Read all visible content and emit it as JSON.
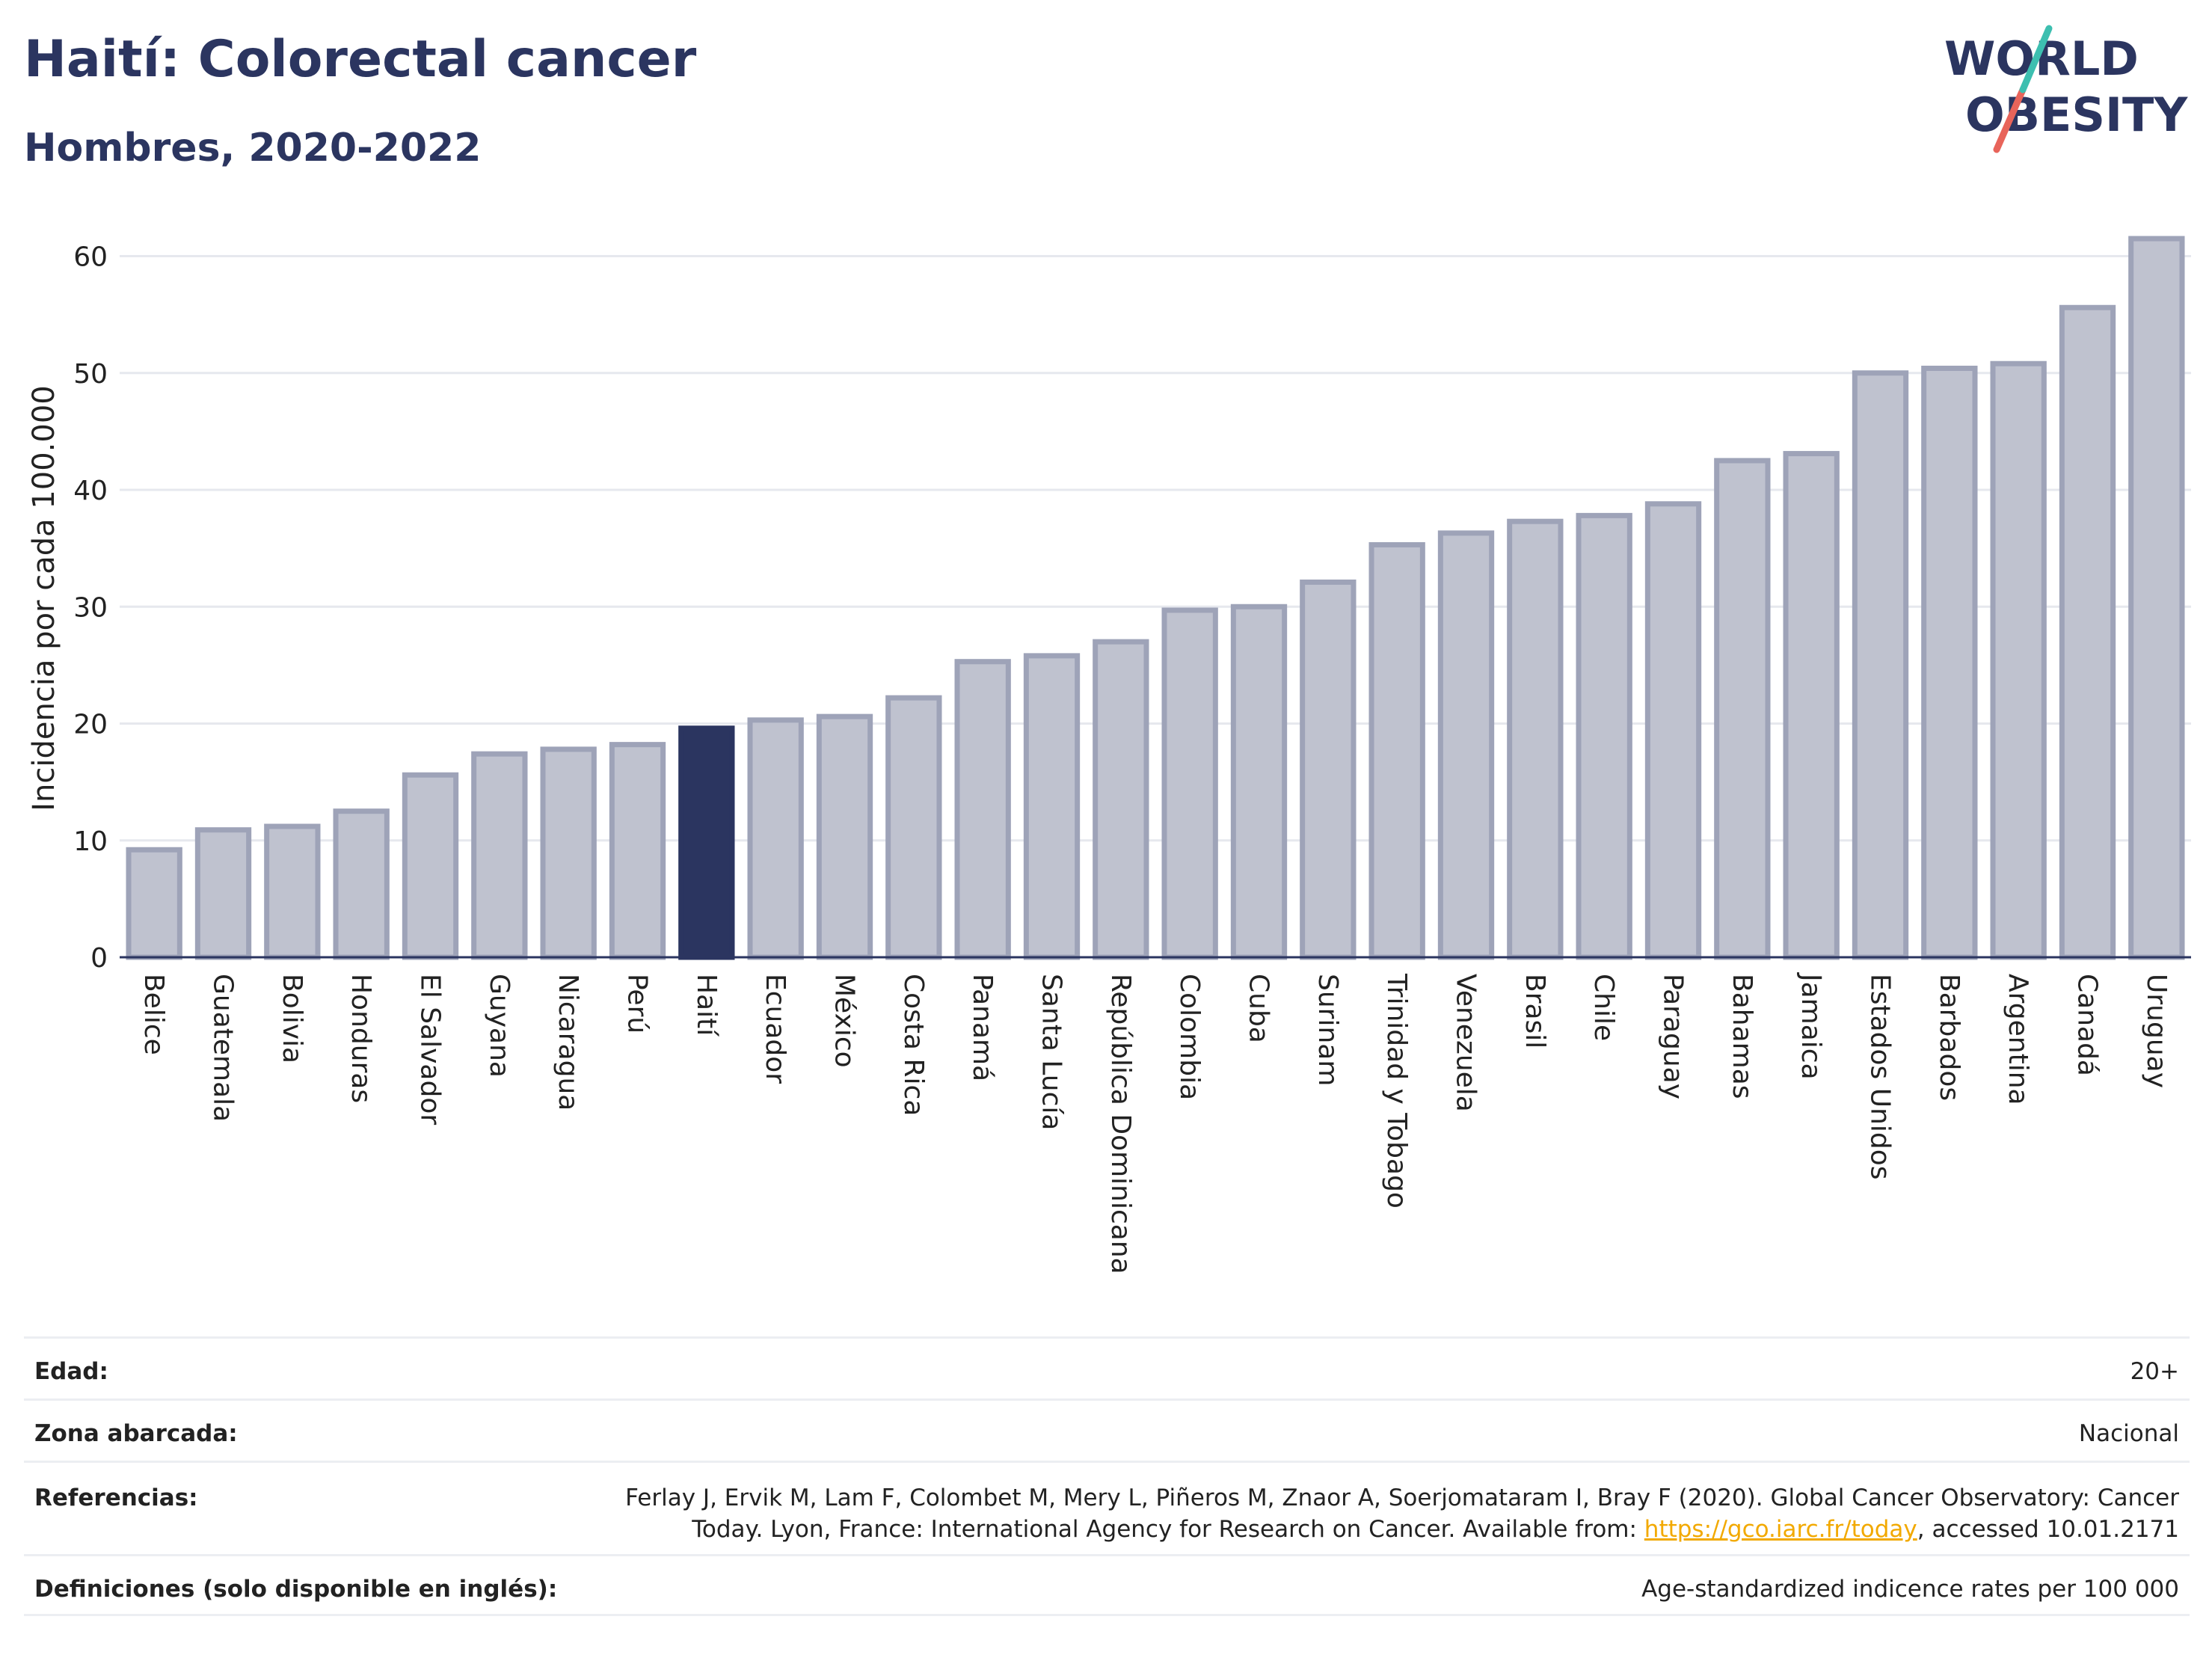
{
  "header": {
    "title": "Haití: Colorectal cancer",
    "subtitle": "Hombres, 2020-2022",
    "logo_line1": "WORLD",
    "logo_line2": "OBESITY"
  },
  "colors": {
    "highlight": "#2b3560",
    "bar_fill": "#bfc2cf",
    "bar_stroke": "#9ea3b8",
    "title": "#2b3560",
    "link": "#f2a900"
  },
  "chart_data": {
    "type": "bar",
    "title": "Haití: Colorectal cancer",
    "subtitle": "Hombres, 2020-2022",
    "xlabel": "",
    "ylabel": "Incidencia por cada 100.000",
    "ylim": [
      0,
      64
    ],
    "yticks": [
      0,
      10,
      20,
      30,
      40,
      50,
      60
    ],
    "grid": true,
    "highlight_category": "Haití",
    "categories": [
      "Belice",
      "Guatemala",
      "Bolivia",
      "Honduras",
      "El Salvador",
      "Guyana",
      "Nicaragua",
      "Perú",
      "Haití",
      "Ecuador",
      "México",
      "Costa Rica",
      "Panamá",
      "Santa Lucía",
      "República Dominicana",
      "Colombia",
      "Cuba",
      "Surinam",
      "Trinidad y Tobago",
      "Venezuela",
      "Brasil",
      "Chile",
      "Paraguay",
      "Bahamas",
      "Jamaica",
      "Estados Unidos",
      "Barbados",
      "Argentina",
      "Canadá",
      "Uruguay"
    ],
    "values": [
      9.2,
      10.9,
      11.2,
      12.5,
      15.6,
      17.4,
      17.8,
      18.2,
      19.6,
      20.3,
      20.6,
      22.2,
      25.3,
      25.8,
      27.0,
      29.7,
      30.0,
      32.1,
      35.3,
      36.3,
      37.3,
      37.8,
      38.8,
      42.5,
      43.1,
      50.0,
      50.4,
      50.8,
      55.6,
      61.5
    ]
  },
  "info": {
    "rows": [
      {
        "label": "Edad:",
        "value": "20+"
      },
      {
        "label": "Zona abarcada:",
        "value": "Nacional"
      },
      {
        "label": "Referencias:",
        "value_line1": "Ferlay J, Ervik M, Lam F, Colombet M, Mery L, Piñeros M, Znaor A, Soerjomataram I, Bray F (2020). Global Cancer Observatory: Cancer",
        "value_line2_pre": "Today. Lyon, France: International Agency for Research on Cancer. Available from: ",
        "link_text": "https://gco.iarc.fr/today",
        "value_line2_post": ", accessed 10.01.2171"
      },
      {
        "label": "Definiciones (solo disponible en inglés):",
        "value": "Age-standardized indicence rates per 100 000"
      }
    ]
  }
}
